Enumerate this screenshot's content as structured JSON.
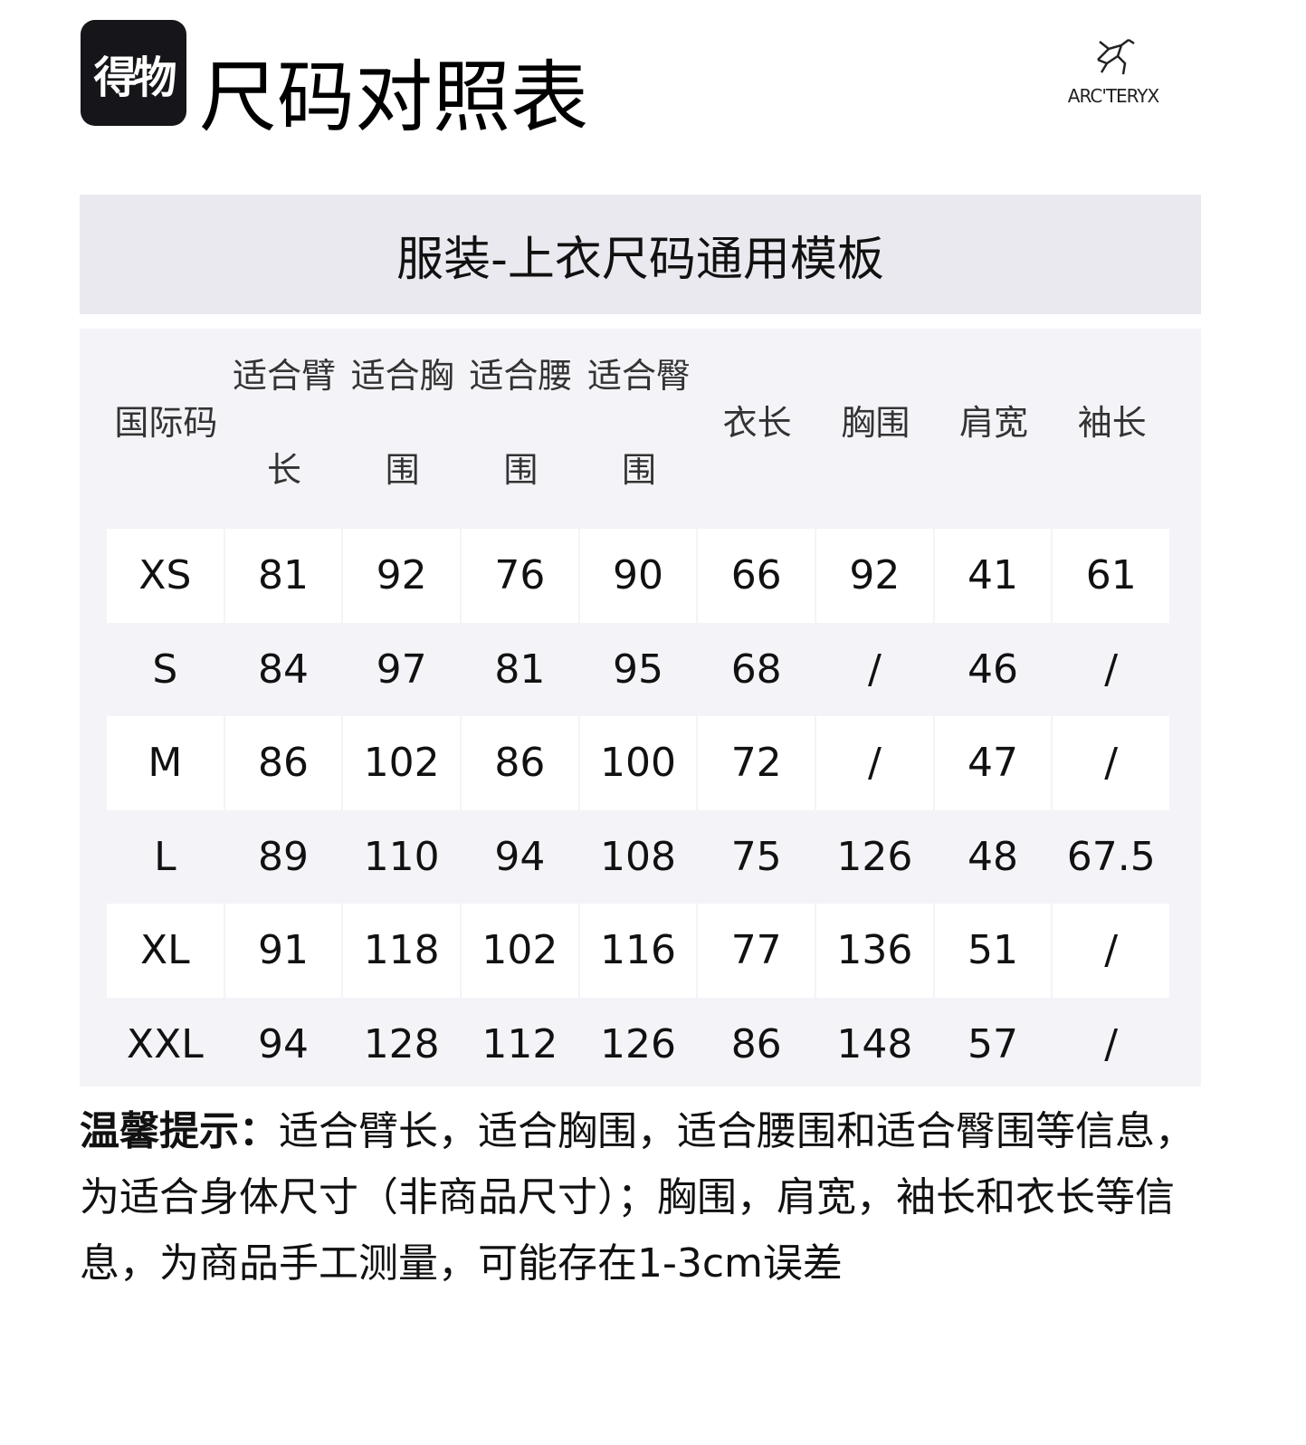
{
  "brand": {
    "badge": "得物",
    "title": "尺码对照表",
    "logo_text": "ARC'TERYX"
  },
  "subtitle": "服装-上衣尺码通用模板",
  "table": {
    "headers": [
      "国际码",
      "适合臂长",
      "适合胸围",
      "适合腰围",
      "适合臀围",
      "衣长",
      "胸围",
      "肩宽",
      "袖长"
    ],
    "rows": [
      [
        "XS",
        "81",
        "92",
        "76",
        "90",
        "66",
        "92",
        "41",
        "61"
      ],
      [
        "S",
        "84",
        "97",
        "81",
        "95",
        "68",
        "/",
        "46",
        "/"
      ],
      [
        "M",
        "86",
        "102",
        "86",
        "100",
        "72",
        "/",
        "47",
        "/"
      ],
      [
        "L",
        "89",
        "110",
        "94",
        "108",
        "75",
        "126",
        "48",
        "67.5"
      ],
      [
        "XL",
        "91",
        "118",
        "102",
        "116",
        "77",
        "136",
        "51",
        "/"
      ],
      [
        "XXL",
        "94",
        "128",
        "112",
        "126",
        "86",
        "148",
        "57",
        "/"
      ]
    ]
  },
  "notes": {
    "label": "温馨提示：",
    "text": "适合臂长，适合胸围，适合腰围和适合臀围等信息，为适合身体尺寸（非商品尺寸）；胸围，肩宽，袖长和衣长等信息，为商品手工测量，可能存在1-3cm误差"
  },
  "colors": {
    "subhead_bg": "#e9e9ef",
    "panel_bg": "#f4f4f8",
    "badge_bg": "#16161a"
  }
}
